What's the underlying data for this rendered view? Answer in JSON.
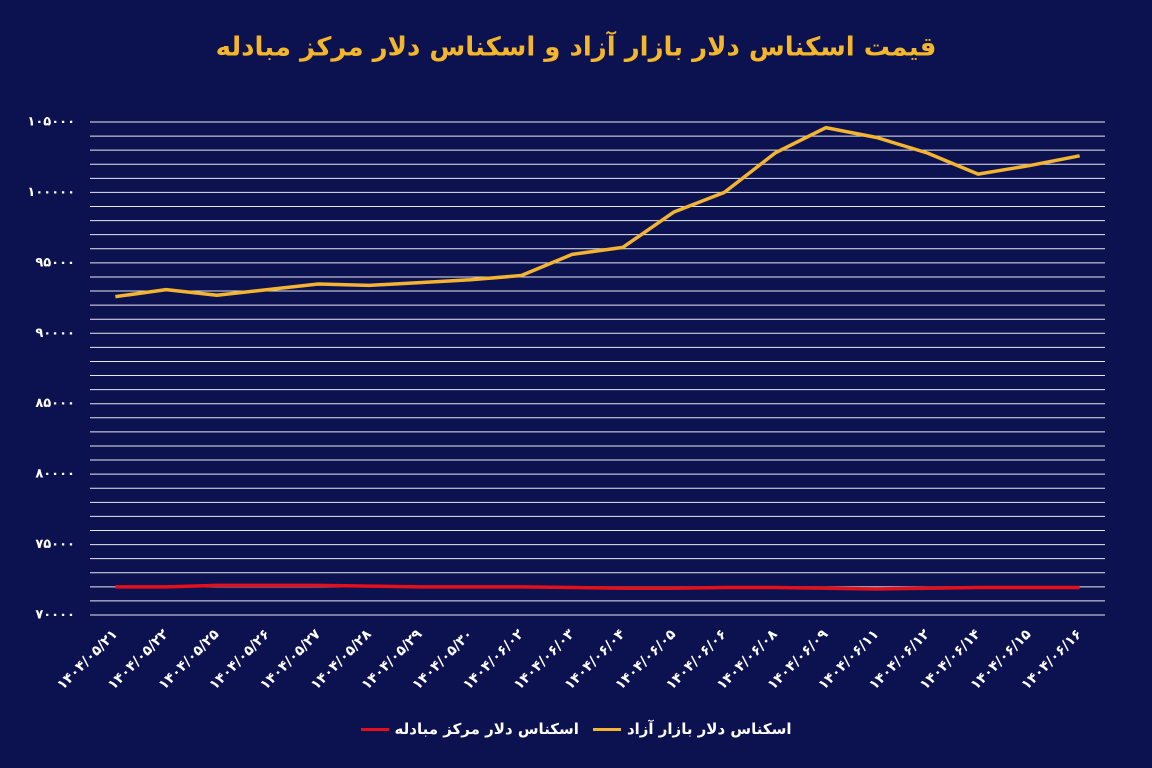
{
  "chart_data": {
    "type": "line",
    "title": "قیمت اسکناس دلار بازار آزاد و اسکناس دلار مرکز مبادله",
    "categories": [
      "۱۴۰۴/۰۵/۲۱",
      "۱۴۰۴/۰۵/۲۲",
      "۱۴۰۴/۰۵/۲۵",
      "۱۴۰۴/۰۵/۲۶",
      "۱۴۰۴/۰۵/۲۷",
      "۱۴۰۴/۰۵/۲۸",
      "۱۴۰۴/۰۵/۲۹",
      "۱۴۰۴/۰۵/۳۰",
      "۱۴۰۴/۰۶/۰۲",
      "۱۴۰۴/۰۶/۰۳",
      "۱۴۰۴/۰۶/۰۴",
      "۱۴۰۴/۰۶/۰۵",
      "۱۴۰۴/۰۶/۰۶",
      "۱۴۰۴/۰۶/۰۸",
      "۱۴۰۴/۰۶/۰۹",
      "۱۴۰۴/۰۶/۱۱",
      "۱۴۰۴/۰۶/۱۲",
      "۱۴۰۴/۰۶/۱۴",
      "۱۴۰۴/۰۶/۱۵",
      "۱۴۰۴/۰۶/۱۶"
    ],
    "series": [
      {
        "name": "اسکناس دلار بازار آزاد",
        "color": "#f2b431",
        "values": [
          92600,
          93100,
          92700,
          93100,
          93500,
          93400,
          93600,
          93800,
          94100,
          95600,
          96100,
          98600,
          100000,
          102800,
          104600,
          103900,
          102800,
          101300,
          101900,
          102600
        ]
      },
      {
        "name": "اسکناس دلار مرکز مبادله",
        "color": "#e3101c",
        "values": [
          72000,
          72000,
          72100,
          72100,
          72100,
          72050,
          72000,
          72000,
          72000,
          71950,
          71900,
          71900,
          71950,
          71950,
          71900,
          71850,
          71900,
          71950,
          71950,
          71950
        ]
      }
    ],
    "ylim": [
      70000,
      105000
    ],
    "yticks": [
      {
        "value": 70000,
        "label": "۷۰۰۰۰"
      },
      {
        "value": 75000,
        "label": "۷۵۰۰۰"
      },
      {
        "value": 80000,
        "label": "۸۰۰۰۰"
      },
      {
        "value": 85000,
        "label": "۸۵۰۰۰"
      },
      {
        "value": 90000,
        "label": "۹۰۰۰۰"
      },
      {
        "value": 95000,
        "label": "۹۵۰۰۰"
      },
      {
        "value": 100000,
        "label": "۱۰۰۰۰۰"
      },
      {
        "value": 105000,
        "label": "۱۰۵۰۰۰"
      }
    ],
    "minor_yticks": [
      71000,
      72000,
      73000,
      74000,
      76000,
      77000,
      78000,
      79000,
      81000,
      82000,
      83000,
      84000,
      86000,
      87000,
      88000,
      89000,
      91000,
      92000,
      93000,
      94000,
      96000,
      97000,
      98000,
      99000,
      101000,
      102000,
      103000,
      104000
    ],
    "grid": true
  }
}
